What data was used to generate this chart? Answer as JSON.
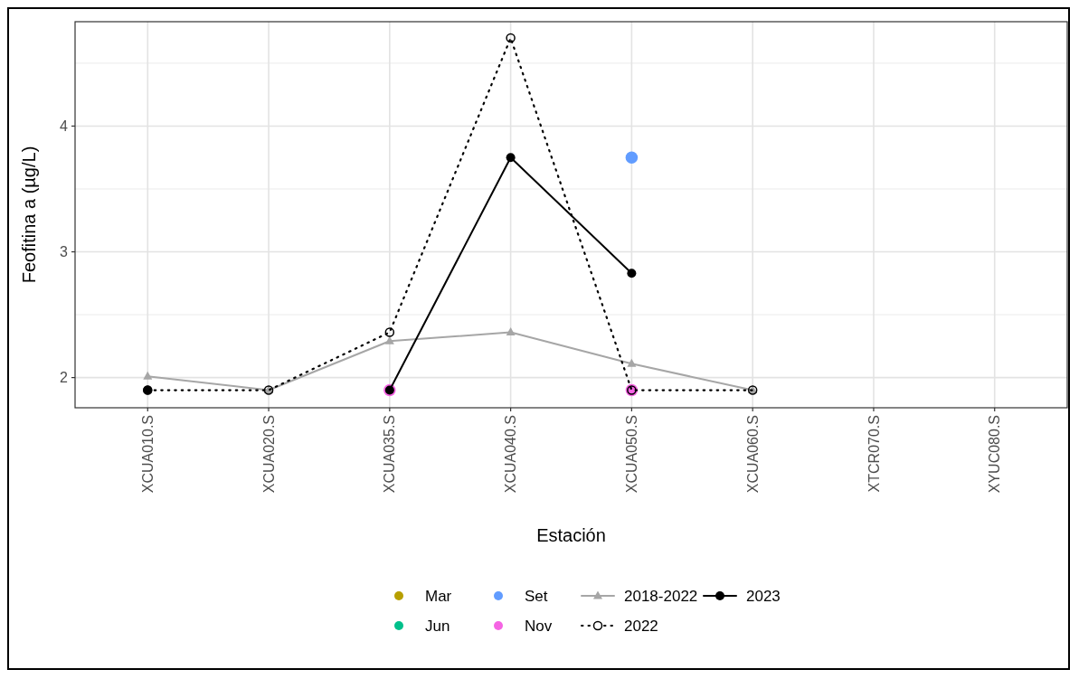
{
  "chart_data": {
    "type": "line",
    "xlabel": "Estación",
    "ylabel": "Feofitina a (µg/L)",
    "categories": [
      "XCUA010.S",
      "XCUA020.S",
      "XCUA035.S",
      "XCUA040.S",
      "XCUA050.S",
      "XCUA060.S",
      "XTCR070.S",
      "XYUC080.S"
    ],
    "ylim": [
      1.76,
      4.83
    ],
    "yticks": [
      2,
      {
        "value": 2.5,
        "label": null
      },
      3,
      {
        "value": 3.5,
        "label": null
      },
      4,
      {
        "value": 4.5,
        "label": null
      }
    ],
    "grid": true,
    "legend": "bottom",
    "series": [
      {
        "name": "Mar",
        "type": "scatter",
        "color": "#b79f00",
        "marker": "circle",
        "values": [
          null,
          null,
          null,
          null,
          null,
          null,
          null,
          null
        ]
      },
      {
        "name": "Jun",
        "type": "scatter",
        "color": "#00c08b",
        "marker": "circle",
        "values": [
          null,
          null,
          null,
          null,
          null,
          null,
          null,
          null
        ]
      },
      {
        "name": "Set",
        "type": "scatter",
        "color": "#619cff",
        "marker": "circle",
        "values": [
          null,
          null,
          null,
          null,
          3.75,
          null,
          null,
          null
        ]
      },
      {
        "name": "Nov",
        "type": "scatter",
        "color": "#f564e3",
        "marker": "circle",
        "values": [
          null,
          null,
          1.9,
          null,
          1.9,
          null,
          null,
          null
        ]
      },
      {
        "name": "2018-2022",
        "color": "#a6a6a6",
        "marker": "triangle",
        "line_style": "solid",
        "values": [
          2.01,
          1.9,
          2.29,
          2.36,
          2.11,
          1.9,
          null,
          null
        ]
      },
      {
        "name": "2022",
        "color": "#000000",
        "marker": "circle-open",
        "line_style": "dotted",
        "values": [
          1.9,
          1.9,
          2.36,
          4.7,
          1.9,
          1.9,
          null,
          null
        ]
      },
      {
        "name": "2023",
        "color": "#000000",
        "marker": "circle",
        "line_style": "solid",
        "values": [
          1.9,
          null,
          1.9,
          3.75,
          2.83,
          null,
          null,
          null
        ]
      }
    ]
  }
}
